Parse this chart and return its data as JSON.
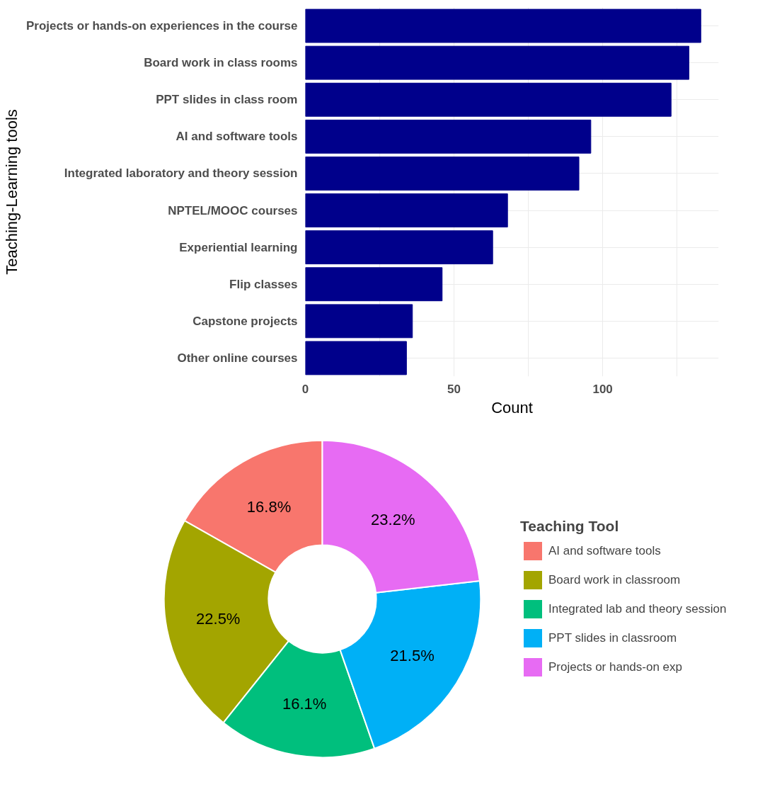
{
  "chart_data": [
    {
      "type": "bar",
      "orientation": "horizontal",
      "ylabel": "Teaching-Learning tools",
      "xlabel": "Count",
      "color": "#00008b",
      "categories": [
        "Projects or hands-on experiences in the course",
        "Board work in class rooms",
        "PPT slides in class room",
        "AI and software tools",
        "Integrated laboratory and theory session",
        "NPTEL/MOOC courses",
        "Experiential learning",
        "Flip classes",
        "Capstone projects",
        "Other online courses"
      ],
      "values": [
        133,
        129,
        123,
        96,
        92,
        68,
        63,
        46,
        36,
        34
      ],
      "xlim": [
        0,
        139
      ],
      "xticks": [
        0,
        {
          "value": 25,
          "label": null
        },
        50,
        {
          "value": 75,
          "label": null
        },
        100,
        {
          "value": 125,
          "label": null
        }
      ],
      "grid": true
    },
    {
      "type": "donut",
      "legend_title": "Teaching Tool",
      "legend": "right",
      "categories": [
        "AI and software tools",
        "Board work in classroom",
        "Integrated lab and theory session",
        "PPT slides in classroom",
        "Projects or hands-on exp"
      ],
      "values": [
        16.8,
        22.5,
        16.1,
        21.5,
        23.2
      ],
      "colors": [
        "#f8766d",
        "#a3a500",
        "#00bf7d",
        "#00b0f6",
        "#e76bf3"
      ],
      "value_labels": [
        "16.8%",
        "22.5%",
        "16.1%",
        "21.5%",
        "23.2%"
      ]
    }
  ]
}
